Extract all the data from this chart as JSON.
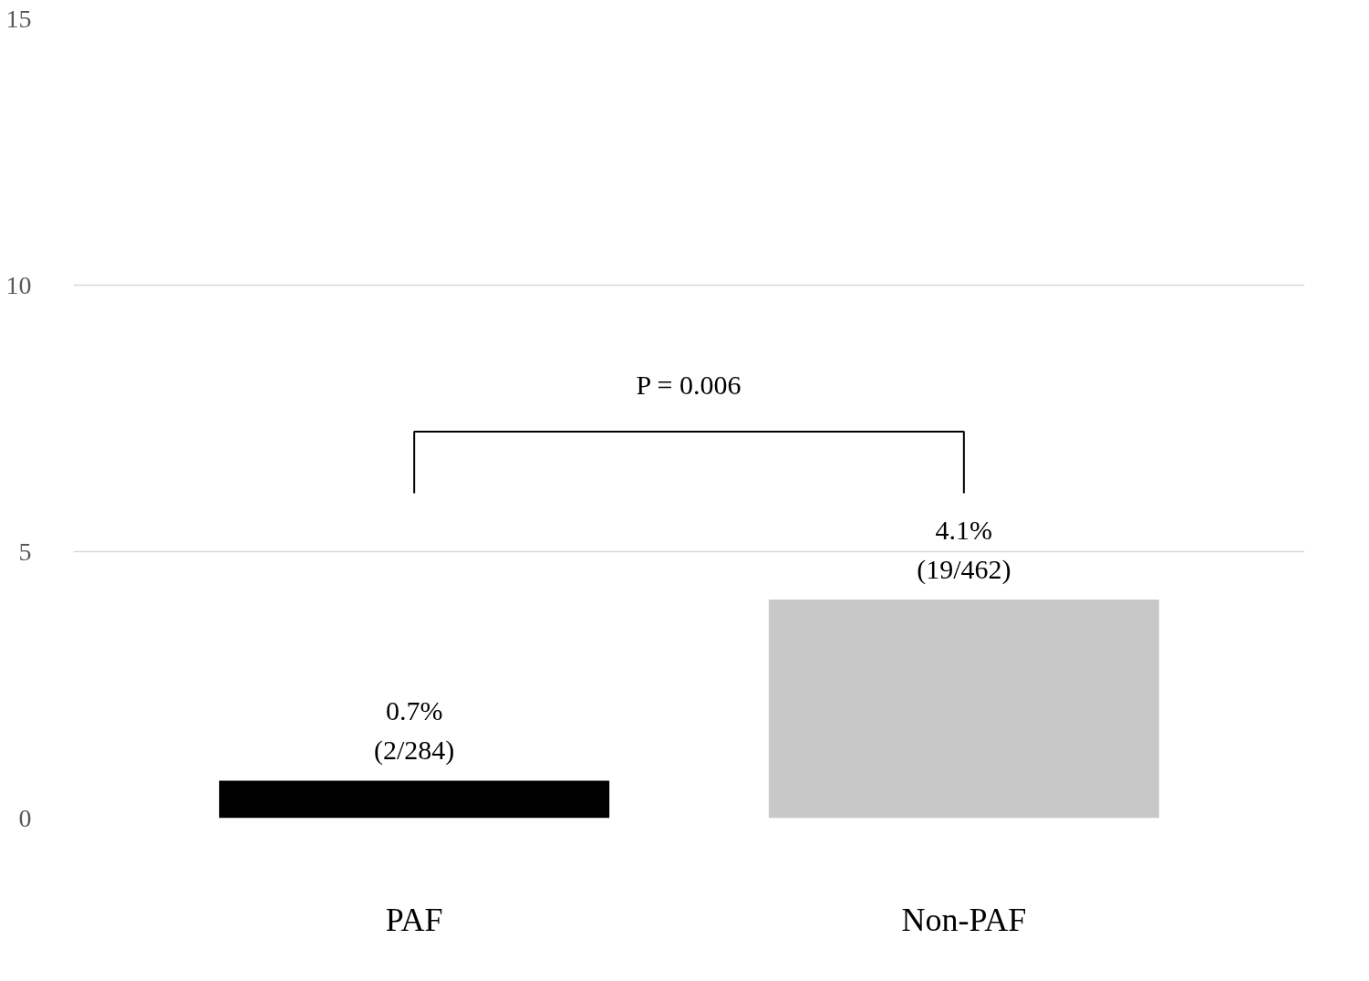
{
  "chart_data": {
    "type": "bar",
    "categories": [
      "PAF",
      "Non-PAF"
    ],
    "values": [
      0.7,
      4.1
    ],
    "colors": [
      "#000000",
      "#c8c8c8"
    ],
    "value_labels": [
      "0.7%\n(2/284)",
      "4.1%\n(19/462)"
    ],
    "annotations": [
      "P = 0.006"
    ],
    "ylim": [
      0,
      15
    ],
    "yticks": [
      0,
      5,
      10,
      15
    ],
    "grid": "y"
  }
}
